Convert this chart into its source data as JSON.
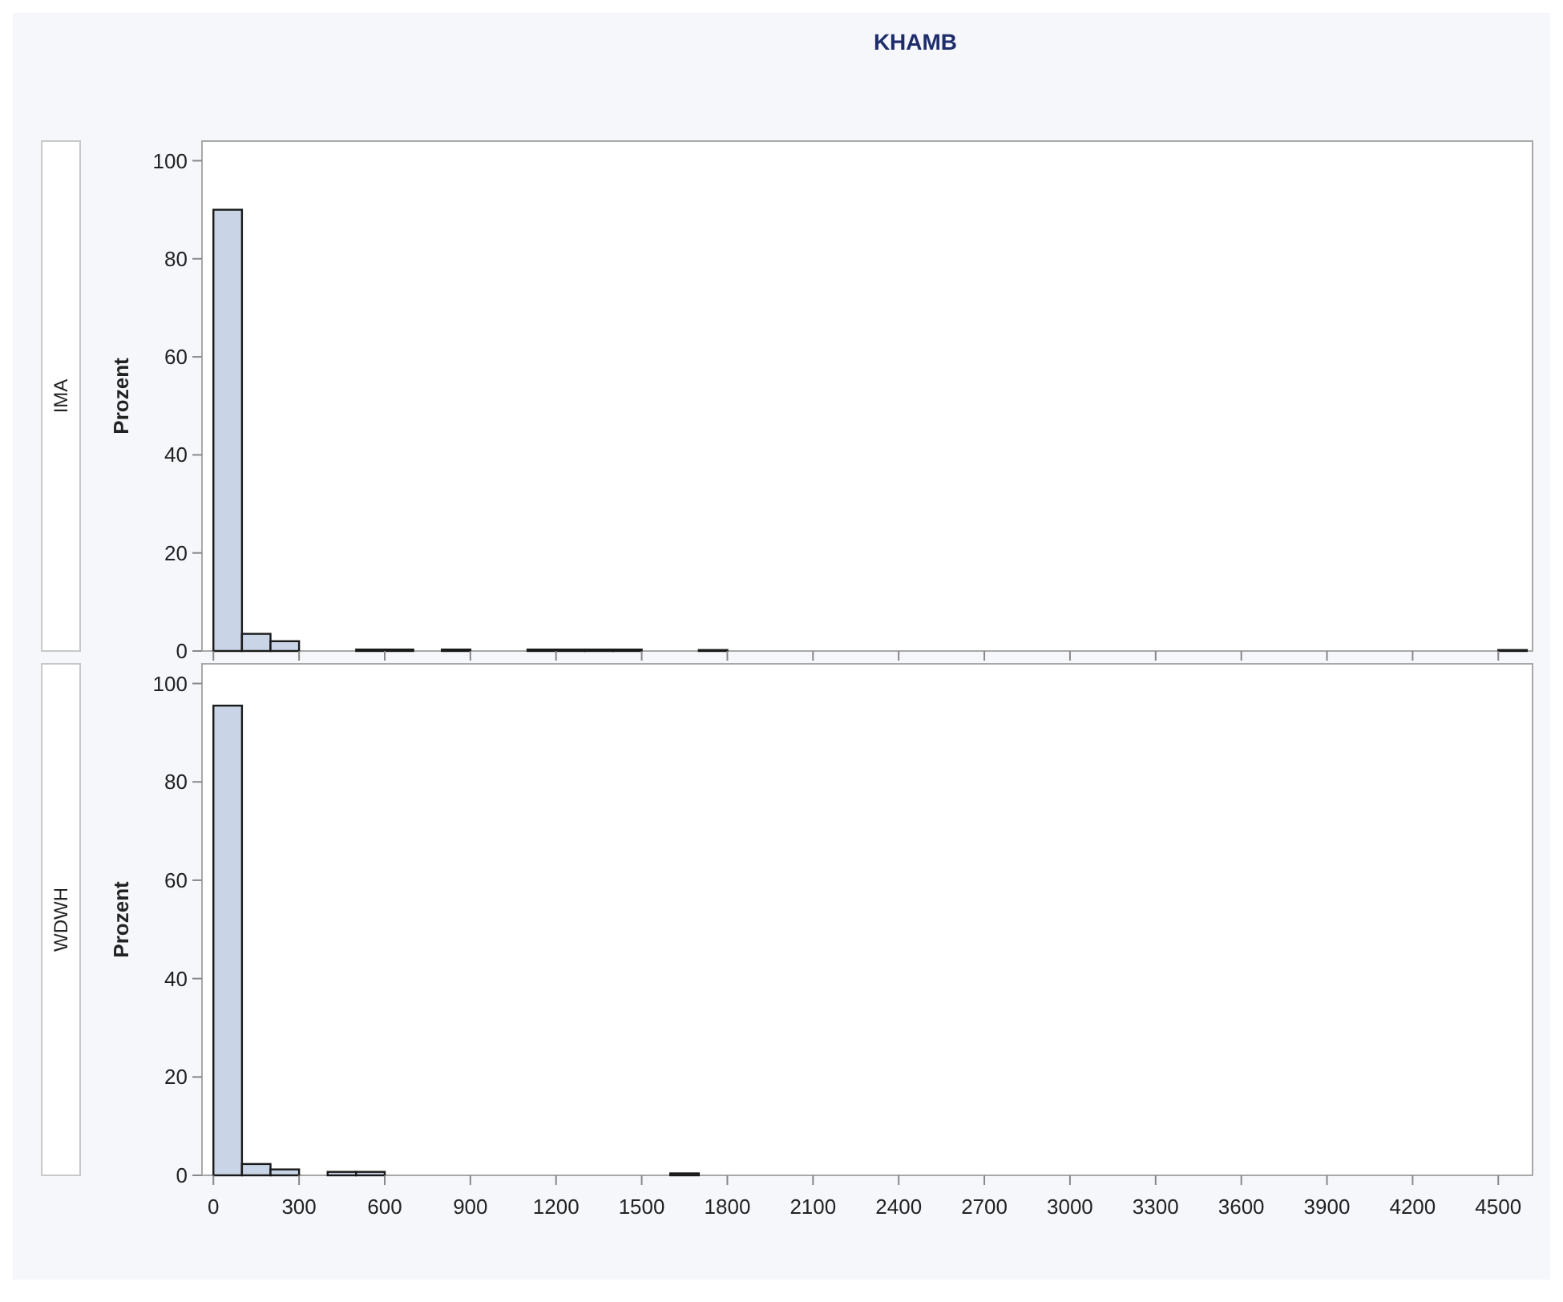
{
  "chart_data": [
    {
      "type": "histogram",
      "title": "KHAMB",
      "annotations": [
        "IMA"
      ],
      "ylabel": "Prozent",
      "color": "#c9d5e6",
      "bins": [
        0,
        100,
        200,
        300,
        400,
        500,
        600,
        700,
        800,
        900,
        1000,
        1100,
        1200,
        1300,
        1400,
        1500,
        1600,
        1700,
        1800,
        1900,
        2000,
        2100,
        2200,
        2300,
        2400,
        2500,
        2600,
        2700,
        2800,
        2900,
        3000,
        3100,
        3200,
        3300,
        3400,
        3500,
        3600,
        3700,
        3800,
        3900,
        4000,
        4100,
        4200,
        4300,
        4400,
        4500,
        4600
      ],
      "values": [
        90,
        3.5,
        2,
        0,
        0,
        0.3,
        0.3,
        0,
        0.3,
        0,
        0,
        0.3,
        0.3,
        0.3,
        0.3,
        0,
        0,
        0.2,
        0,
        0,
        0,
        0,
        0,
        0,
        0,
        0,
        0,
        0,
        0,
        0,
        0,
        0,
        0,
        0,
        0,
        0,
        0,
        0,
        0,
        0,
        0,
        0,
        0,
        0,
        0,
        0.2
      ],
      "xlim": [
        -40,
        4620
      ],
      "xticks": [
        0,
        300,
        600,
        900,
        1200,
        1500,
        1800,
        2100,
        2400,
        2700,
        3000,
        3300,
        3600,
        3900,
        4200,
        4500
      ],
      "ylim": [
        0,
        104
      ],
      "yticks": [
        0,
        20,
        40,
        60,
        80,
        100
      ],
      "tick_labels": "y",
      "grid": false
    },
    {
      "type": "histogram",
      "annotations": [
        "WDWH"
      ],
      "ylabel": "Prozent",
      "color": "#c9d5e6",
      "bins": [
        0,
        100,
        200,
        300,
        400,
        500,
        600,
        700,
        800,
        900,
        1000,
        1100,
        1200,
        1300,
        1400,
        1500,
        1600,
        1700,
        1800,
        1900,
        2000,
        2100,
        2200,
        2300,
        2400,
        2500,
        2600,
        2700,
        2800,
        2900,
        3000,
        3100,
        3200,
        3300,
        3400,
        3500,
        3600,
        3700,
        3800,
        3900,
        4000,
        4100,
        4200,
        4300,
        4400,
        4500,
        4600
      ],
      "values": [
        95.5,
        2.3,
        1.2,
        0,
        0.7,
        0.7,
        0,
        0,
        0,
        0,
        0,
        0,
        0,
        0,
        0,
        0,
        0.4,
        0,
        0,
        0,
        0,
        0,
        0,
        0,
        0,
        0,
        0,
        0,
        0,
        0,
        0,
        0,
        0,
        0,
        0,
        0,
        0,
        0,
        0,
        0,
        0,
        0,
        0,
        0,
        0,
        0
      ],
      "xlim": [
        -40,
        4620
      ],
      "xticks": [
        0,
        300,
        600,
        900,
        1200,
        1500,
        1800,
        2100,
        2400,
        2700,
        3000,
        3300,
        3600,
        3900,
        4200,
        4500
      ],
      "ylim": [
        0,
        104
      ],
      "yticks": [
        0,
        20,
        40,
        60,
        80,
        100
      ],
      "grid": false
    }
  ]
}
